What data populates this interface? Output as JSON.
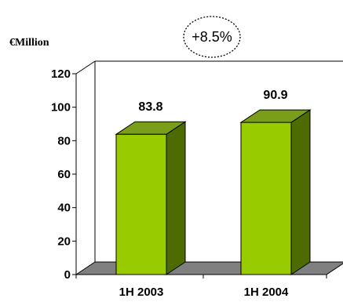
{
  "chart_data": {
    "type": "bar",
    "unit_label": "€Million",
    "categories": [
      "1H 2003",
      "1H 2004"
    ],
    "series": [
      {
        "values": [
          83.8,
          90.9
        ]
      }
    ],
    "data_labels": [
      "83.8",
      "90.9"
    ],
    "annotation": "+8.5%",
    "ylim": [
      0,
      120
    ],
    "yticks": [
      0,
      20,
      40,
      60,
      80,
      100,
      120
    ],
    "grid": false,
    "legend": "none",
    "three_d": true,
    "colors": {
      "bar_front": "#99cc00",
      "bar_side": "#4d6b00",
      "bar_top": "#7a9e1a",
      "floor": "#808080",
      "axis": "#000000"
    }
  }
}
